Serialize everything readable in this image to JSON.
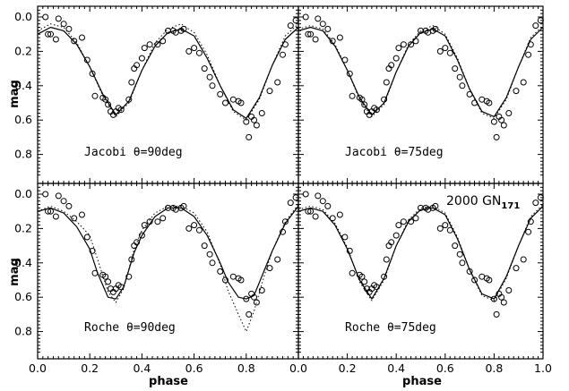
{
  "chart_data": [
    {
      "type": "scatter",
      "panel": "top-left",
      "annotation": "Jacobi θ=90deg",
      "xlim": [
        0.0,
        1.0
      ],
      "ylim": [
        0.0,
        1.0
      ],
      "y_inverted": true,
      "x": [
        0.03,
        0.04,
        0.05,
        0.07,
        0.08,
        0.1,
        0.12,
        0.14,
        0.17,
        0.19,
        0.21,
        0.22,
        0.25,
        0.26,
        0.27,
        0.28,
        0.29,
        0.3,
        0.31,
        0.32,
        0.35,
        0.36,
        0.37,
        0.38,
        0.4,
        0.41,
        0.43,
        0.46,
        0.48,
        0.5,
        0.52,
        0.53,
        0.55,
        0.56,
        0.58,
        0.6,
        0.62,
        0.64,
        0.66,
        0.67,
        0.7,
        0.72,
        0.75,
        0.77,
        0.78,
        0.8,
        0.81,
        0.82,
        0.83,
        0.84,
        0.86,
        0.89,
        0.92,
        0.94,
        0.95,
        0.97,
        0.99
      ],
      "y": [
        0.0,
        0.1,
        0.1,
        0.13,
        0.01,
        0.04,
        0.07,
        0.14,
        0.12,
        0.25,
        0.33,
        0.46,
        0.47,
        0.48,
        0.51,
        0.55,
        0.57,
        0.55,
        0.53,
        0.54,
        0.48,
        0.38,
        0.3,
        0.28,
        0.24,
        0.18,
        0.16,
        0.16,
        0.14,
        0.08,
        0.08,
        0.09,
        0.08,
        0.07,
        0.2,
        0.18,
        0.21,
        0.3,
        0.35,
        0.4,
        0.45,
        0.5,
        0.48,
        0.49,
        0.5,
        0.61,
        0.7,
        0.58,
        0.6,
        0.63,
        0.56,
        0.43,
        0.38,
        0.22,
        0.16,
        0.05,
        0.02
      ],
      "series": [
        {
          "name": "",
          "style": "solid",
          "x": [
            0.0,
            0.05,
            0.1,
            0.15,
            0.2,
            0.25,
            0.3,
            0.35,
            0.4,
            0.45,
            0.5,
            0.55,
            0.6,
            0.65,
            0.7,
            0.75,
            0.8,
            0.85,
            0.9,
            0.95,
            1.0
          ],
          "y": [
            0.1,
            0.06,
            0.08,
            0.16,
            0.29,
            0.45,
            0.57,
            0.49,
            0.31,
            0.17,
            0.09,
            0.07,
            0.11,
            0.24,
            0.4,
            0.54,
            0.59,
            0.47,
            0.28,
            0.13,
            0.06
          ]
        },
        {
          "name": "",
          "style": "dotted",
          "x": [
            0.0,
            0.05,
            0.1,
            0.15,
            0.2,
            0.25,
            0.3,
            0.35,
            0.4,
            0.45,
            0.5,
            0.55,
            0.6,
            0.65,
            0.7,
            0.75,
            0.8,
            0.85,
            0.9,
            0.95,
            1.0
          ],
          "y": [
            0.08,
            0.04,
            0.06,
            0.15,
            0.29,
            0.46,
            0.58,
            0.5,
            0.31,
            0.15,
            0.07,
            0.04,
            0.09,
            0.22,
            0.4,
            0.55,
            0.6,
            0.48,
            0.28,
            0.11,
            0.04
          ]
        }
      ]
    },
    {
      "type": "scatter",
      "panel": "top-right",
      "annotation": "Jacobi θ=75deg",
      "xlim": [
        0.0,
        1.0
      ],
      "ylim": [
        0.0,
        1.0
      ],
      "y_inverted": true,
      "x": [
        0.03,
        0.04,
        0.05,
        0.07,
        0.08,
        0.1,
        0.12,
        0.14,
        0.17,
        0.19,
        0.21,
        0.22,
        0.25,
        0.26,
        0.27,
        0.28,
        0.29,
        0.3,
        0.31,
        0.32,
        0.35,
        0.36,
        0.37,
        0.38,
        0.4,
        0.41,
        0.43,
        0.46,
        0.48,
        0.5,
        0.52,
        0.53,
        0.55,
        0.56,
        0.58,
        0.6,
        0.62,
        0.64,
        0.66,
        0.67,
        0.7,
        0.72,
        0.75,
        0.77,
        0.78,
        0.8,
        0.81,
        0.82,
        0.83,
        0.84,
        0.86,
        0.89,
        0.92,
        0.94,
        0.95,
        0.97,
        0.99
      ],
      "y": [
        0.0,
        0.1,
        0.1,
        0.13,
        0.01,
        0.04,
        0.07,
        0.14,
        0.12,
        0.25,
        0.33,
        0.46,
        0.47,
        0.48,
        0.51,
        0.55,
        0.57,
        0.55,
        0.53,
        0.54,
        0.48,
        0.38,
        0.3,
        0.28,
        0.24,
        0.18,
        0.16,
        0.16,
        0.14,
        0.08,
        0.08,
        0.09,
        0.08,
        0.07,
        0.2,
        0.18,
        0.21,
        0.3,
        0.35,
        0.4,
        0.45,
        0.5,
        0.48,
        0.49,
        0.5,
        0.61,
        0.7,
        0.58,
        0.6,
        0.63,
        0.56,
        0.43,
        0.38,
        0.22,
        0.16,
        0.05,
        0.02
      ],
      "series": [
        {
          "name": "",
          "style": "solid",
          "x": [
            0.0,
            0.05,
            0.1,
            0.15,
            0.2,
            0.25,
            0.3,
            0.35,
            0.4,
            0.45,
            0.5,
            0.55,
            0.6,
            0.65,
            0.7,
            0.75,
            0.8,
            0.85,
            0.9,
            0.95,
            1.0
          ],
          "y": [
            0.08,
            0.06,
            0.08,
            0.17,
            0.31,
            0.47,
            0.57,
            0.5,
            0.32,
            0.17,
            0.09,
            0.07,
            0.11,
            0.25,
            0.42,
            0.55,
            0.58,
            0.47,
            0.29,
            0.13,
            0.06
          ]
        },
        {
          "name": "",
          "style": "dotted",
          "x": [
            0.0,
            0.05,
            0.1,
            0.15,
            0.2,
            0.25,
            0.3,
            0.35,
            0.4,
            0.45,
            0.5,
            0.55,
            0.6,
            0.65,
            0.7,
            0.75,
            0.8,
            0.85,
            0.9,
            0.95,
            1.0
          ],
          "y": [
            0.07,
            0.05,
            0.07,
            0.16,
            0.31,
            0.48,
            0.58,
            0.51,
            0.32,
            0.16,
            0.08,
            0.05,
            0.1,
            0.24,
            0.42,
            0.56,
            0.59,
            0.48,
            0.29,
            0.12,
            0.05
          ]
        }
      ]
    },
    {
      "type": "scatter",
      "panel": "bottom-left",
      "annotation": "Roche θ=90deg",
      "xlim": [
        0.0,
        1.0
      ],
      "ylim": [
        0.0,
        1.0
      ],
      "y_inverted": true,
      "x": [
        0.03,
        0.04,
        0.05,
        0.07,
        0.08,
        0.1,
        0.12,
        0.14,
        0.17,
        0.19,
        0.21,
        0.22,
        0.25,
        0.26,
        0.27,
        0.28,
        0.29,
        0.3,
        0.31,
        0.32,
        0.35,
        0.36,
        0.37,
        0.38,
        0.4,
        0.41,
        0.43,
        0.46,
        0.48,
        0.5,
        0.52,
        0.53,
        0.55,
        0.56,
        0.58,
        0.6,
        0.62,
        0.64,
        0.66,
        0.67,
        0.7,
        0.72,
        0.75,
        0.77,
        0.78,
        0.8,
        0.81,
        0.82,
        0.83,
        0.84,
        0.86,
        0.89,
        0.92,
        0.94,
        0.95,
        0.97,
        0.99
      ],
      "y": [
        0.0,
        0.1,
        0.1,
        0.13,
        0.01,
        0.04,
        0.07,
        0.14,
        0.12,
        0.25,
        0.33,
        0.46,
        0.47,
        0.48,
        0.51,
        0.55,
        0.57,
        0.55,
        0.53,
        0.54,
        0.48,
        0.38,
        0.3,
        0.28,
        0.24,
        0.18,
        0.16,
        0.16,
        0.14,
        0.08,
        0.08,
        0.09,
        0.08,
        0.07,
        0.2,
        0.18,
        0.21,
        0.3,
        0.35,
        0.4,
        0.45,
        0.5,
        0.48,
        0.49,
        0.5,
        0.61,
        0.7,
        0.58,
        0.6,
        0.63,
        0.56,
        0.43,
        0.38,
        0.22,
        0.16,
        0.05,
        0.02
      ],
      "series": [
        {
          "name": "",
          "style": "solid",
          "x": [
            0.0,
            0.05,
            0.1,
            0.15,
            0.2,
            0.23,
            0.27,
            0.3,
            0.33,
            0.37,
            0.4,
            0.45,
            0.5,
            0.55,
            0.6,
            0.65,
            0.7,
            0.73,
            0.77,
            0.8,
            0.83,
            0.87,
            0.9,
            0.95,
            1.0
          ],
          "y": [
            0.1,
            0.08,
            0.11,
            0.19,
            0.32,
            0.46,
            0.6,
            0.61,
            0.54,
            0.34,
            0.24,
            0.13,
            0.08,
            0.08,
            0.13,
            0.24,
            0.4,
            0.51,
            0.6,
            0.61,
            0.59,
            0.44,
            0.33,
            0.17,
            0.07
          ]
        },
        {
          "name": "",
          "style": "dotted",
          "x": [
            0.0,
            0.05,
            0.1,
            0.15,
            0.2,
            0.23,
            0.27,
            0.3,
            0.33,
            0.37,
            0.4,
            0.45,
            0.5,
            0.55,
            0.6,
            0.65,
            0.7,
            0.73,
            0.77,
            0.8,
            0.83,
            0.87,
            0.9,
            0.95,
            1.0
          ],
          "y": [
            0.1,
            0.07,
            0.1,
            0.16,
            0.24,
            0.38,
            0.57,
            0.63,
            0.55,
            0.32,
            0.21,
            0.11,
            0.07,
            0.07,
            0.11,
            0.22,
            0.41,
            0.56,
            0.7,
            0.8,
            0.68,
            0.47,
            0.33,
            0.16,
            0.06
          ]
        }
      ]
    },
    {
      "type": "scatter",
      "panel": "bottom-right",
      "annotation": "Roche θ=75deg",
      "title": "2000 GN",
      "title_subscript": "171",
      "xlabel": "phase",
      "xlim": [
        0.0,
        1.0
      ],
      "ylim": [
        0.0,
        1.0
      ],
      "y_inverted": true,
      "x": [
        0.03,
        0.04,
        0.05,
        0.07,
        0.08,
        0.1,
        0.12,
        0.14,
        0.17,
        0.19,
        0.21,
        0.22,
        0.25,
        0.26,
        0.27,
        0.28,
        0.29,
        0.3,
        0.31,
        0.32,
        0.35,
        0.36,
        0.37,
        0.38,
        0.4,
        0.41,
        0.43,
        0.46,
        0.48,
        0.5,
        0.52,
        0.53,
        0.55,
        0.56,
        0.58,
        0.6,
        0.62,
        0.64,
        0.66,
        0.67,
        0.7,
        0.72,
        0.75,
        0.77,
        0.78,
        0.8,
        0.81,
        0.82,
        0.83,
        0.84,
        0.86,
        0.89,
        0.92,
        0.94,
        0.95,
        0.97,
        0.99
      ],
      "y": [
        0.0,
        0.1,
        0.1,
        0.13,
        0.01,
        0.04,
        0.07,
        0.14,
        0.12,
        0.25,
        0.33,
        0.46,
        0.47,
        0.48,
        0.51,
        0.55,
        0.57,
        0.55,
        0.53,
        0.54,
        0.48,
        0.38,
        0.3,
        0.28,
        0.24,
        0.18,
        0.16,
        0.16,
        0.14,
        0.08,
        0.08,
        0.09,
        0.08,
        0.07,
        0.2,
        0.18,
        0.21,
        0.3,
        0.35,
        0.4,
        0.45,
        0.5,
        0.48,
        0.49,
        0.5,
        0.61,
        0.7,
        0.58,
        0.6,
        0.63,
        0.56,
        0.43,
        0.38,
        0.22,
        0.16,
        0.05,
        0.02
      ],
      "series": [
        {
          "name": "",
          "style": "solid",
          "x": [
            0.0,
            0.05,
            0.1,
            0.15,
            0.2,
            0.25,
            0.3,
            0.35,
            0.4,
            0.45,
            0.5,
            0.55,
            0.6,
            0.65,
            0.7,
            0.75,
            0.8,
            0.85,
            0.9,
            0.95,
            1.0
          ],
          "y": [
            0.1,
            0.08,
            0.1,
            0.18,
            0.32,
            0.5,
            0.61,
            0.49,
            0.3,
            0.16,
            0.09,
            0.08,
            0.12,
            0.26,
            0.44,
            0.58,
            0.61,
            0.48,
            0.3,
            0.14,
            0.07
          ]
        },
        {
          "name": "",
          "style": "dotted",
          "x": [
            0.0,
            0.05,
            0.1,
            0.15,
            0.2,
            0.25,
            0.3,
            0.35,
            0.4,
            0.45,
            0.5,
            0.55,
            0.6,
            0.65,
            0.7,
            0.75,
            0.8,
            0.85,
            0.9,
            0.95,
            1.0
          ],
          "y": [
            0.09,
            0.07,
            0.09,
            0.17,
            0.31,
            0.51,
            0.62,
            0.5,
            0.3,
            0.15,
            0.08,
            0.07,
            0.11,
            0.25,
            0.44,
            0.59,
            0.62,
            0.49,
            0.3,
            0.13,
            0.06
          ]
        }
      ]
    }
  ],
  "axes": {
    "ylabel": "mag",
    "xlabel": "phase",
    "yticks": [
      "0.0",
      "0.2",
      "0.4",
      "0.6",
      "0.8"
    ],
    "xticks_left": [
      "0.0",
      "0.2",
      "0.4",
      "0.6",
      "0.8",
      "0.0"
    ],
    "xticks_right": [
      "0.2",
      "0.4",
      "0.6",
      "0.8",
      "1.0"
    ]
  }
}
